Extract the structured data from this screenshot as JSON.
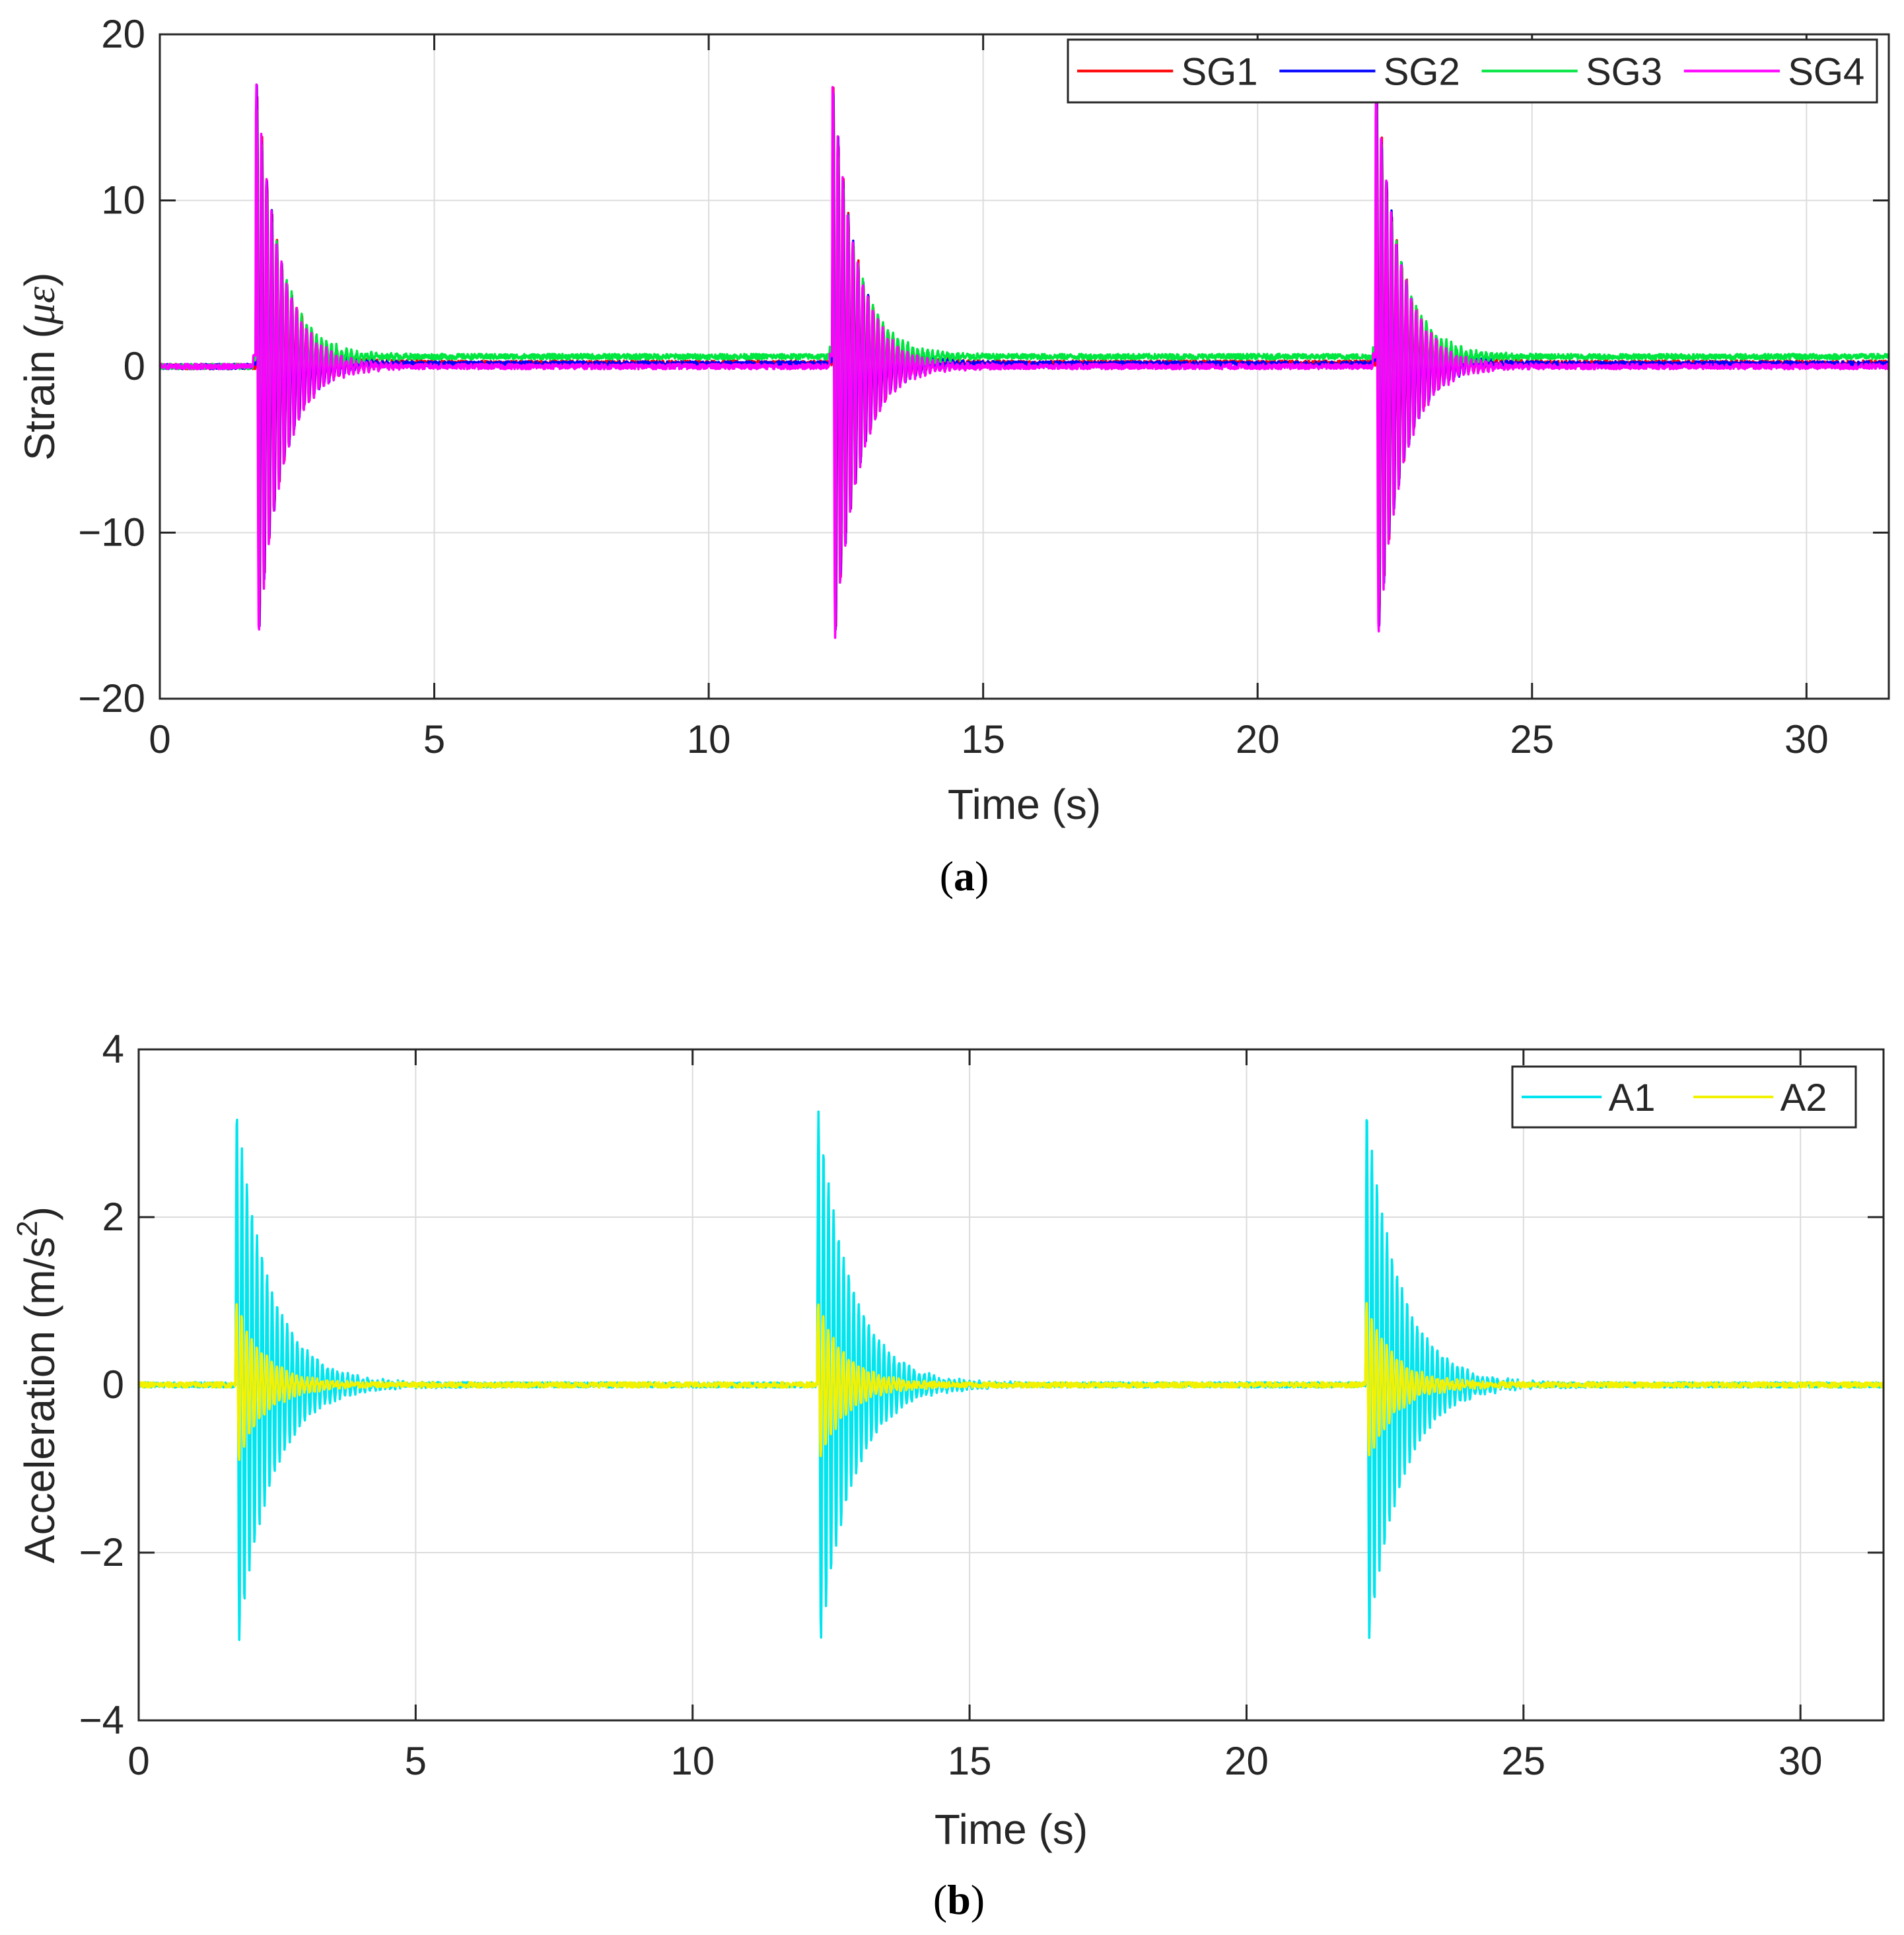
{
  "chart_data": [
    {
      "type": "line",
      "panel": "a",
      "caption_letter": "a",
      "title": "",
      "xlabel": "Time (s)",
      "ylabel": "Strain (",
      "ylabel_unit": "με",
      "ylabel_close": ")",
      "xlim": [
        0,
        31.5
      ],
      "ylim": [
        -20,
        20
      ],
      "xticks": [
        0,
        5,
        10,
        15,
        20,
        25,
        30
      ],
      "xtick_labels": [
        "0",
        "5",
        "10",
        "15",
        "20",
        "25",
        "30"
      ],
      "yticks": [
        -20,
        -10,
        0,
        10,
        20
      ],
      "ytick_labels": [
        "−20",
        "−10",
        "0",
        "10",
        "20"
      ],
      "grid": true,
      "legend_position": "top-right",
      "impacts": [
        1.75,
        12.25,
        22.15
      ],
      "series": [
        {
          "name": "SG1",
          "color": "#ff0000",
          "baseline_after": 0.2,
          "peak_max": 17.5,
          "peak_min": -18.5,
          "decay": 0.45
        },
        {
          "name": "SG2",
          "color": "#0000ff",
          "baseline_after": 0.15,
          "peak_max": 17.5,
          "peak_min": -18.5,
          "decay": 0.45
        },
        {
          "name": "SG3",
          "color": "#00e640",
          "baseline_after": 0.6,
          "peak_max": 16.0,
          "peak_min": -17.0,
          "decay": 0.45
        },
        {
          "name": "SG4",
          "color": "#ff00ff",
          "baseline_after": 0.0,
          "peak_max": 17.5,
          "peak_min": -18.5,
          "decay": 0.45
        }
      ]
    },
    {
      "type": "line",
      "panel": "b",
      "caption_letter": "b",
      "title": "",
      "xlabel": "Time (s)",
      "ylabel": "Acceleration (m/s",
      "ylabel_sup": "2",
      "ylabel_close": ")",
      "xlim": [
        0,
        31.5
      ],
      "ylim": [
        -4,
        4
      ],
      "xticks": [
        0,
        5,
        10,
        15,
        20,
        25,
        30
      ],
      "xtick_labels": [
        "0",
        "5",
        "10",
        "15",
        "20",
        "25",
        "30"
      ],
      "yticks": [
        -4,
        -2,
        0,
        2,
        4
      ],
      "ytick_labels": [
        "−4",
        "−2",
        "0",
        "2",
        "4"
      ],
      "grid": true,
      "legend_position": "top-right",
      "impacts": [
        1.75,
        12.25,
        22.15
      ],
      "series": [
        {
          "name": "A1",
          "color": "#00e5ee",
          "baseline_after": 0.0,
          "peak_max": 3.4,
          "peak_min": -3.4,
          "decay": 0.6
        },
        {
          "name": "A2",
          "color": "#f2f200",
          "baseline_after": 0.0,
          "peak_max": 1.0,
          "peak_min": -1.0,
          "decay": 0.5
        }
      ]
    }
  ]
}
